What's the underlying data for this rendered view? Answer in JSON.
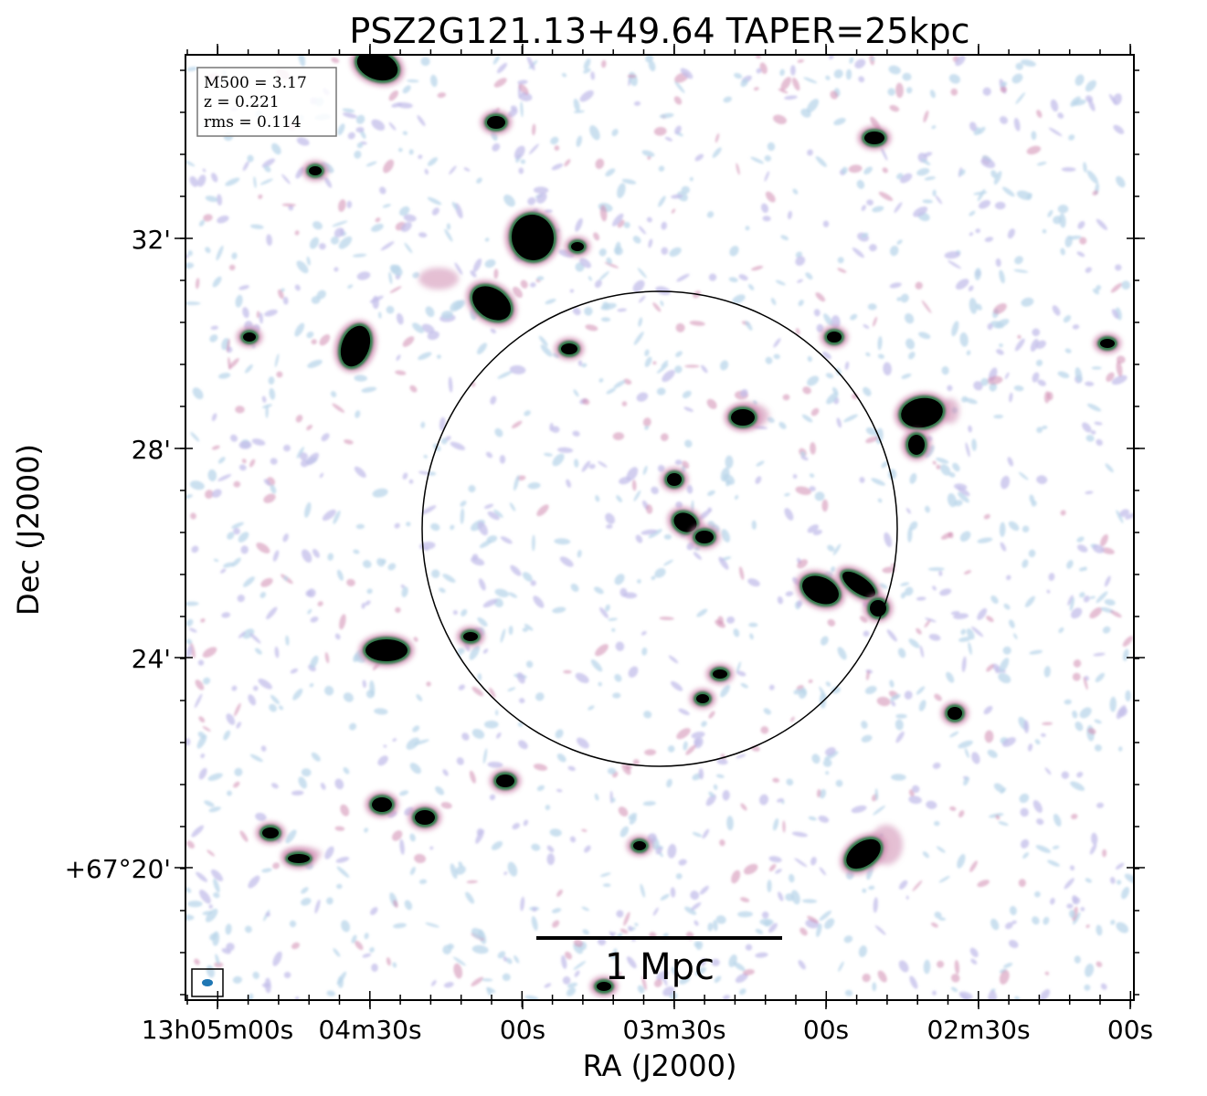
{
  "chart_data": {
    "type": "heatmap",
    "title": "PSZ2G121.13+49.64 TAPER=25kpc",
    "xlabel": "RA (J2000)",
    "ylabel": "Dec (J2000)",
    "x_tick_labels": [
      "13h05m00s",
      "04m30s",
      "00s",
      "03m30s",
      "00s",
      "02m30s",
      "00s"
    ],
    "y_tick_labels": [
      "32'",
      "28'",
      "24'",
      "+67°20'"
    ],
    "info_box": [
      "M500 = 3.17",
      "z = 0.221",
      "rms = 0.114"
    ],
    "scale_bar_label": "1 Mpc",
    "colormap": "cubehelix_r",
    "colors": {
      "faint_blue": "#b9d6ea",
      "faint_lavender": "#c3bde9",
      "pink": "#cf8ab0",
      "green": "#2e7a48",
      "black": "#000000",
      "beam": "#1f77b4"
    },
    "overlay": "circle marking the cluster region",
    "beam": "ellipse in a box at lower-left corner"
  }
}
